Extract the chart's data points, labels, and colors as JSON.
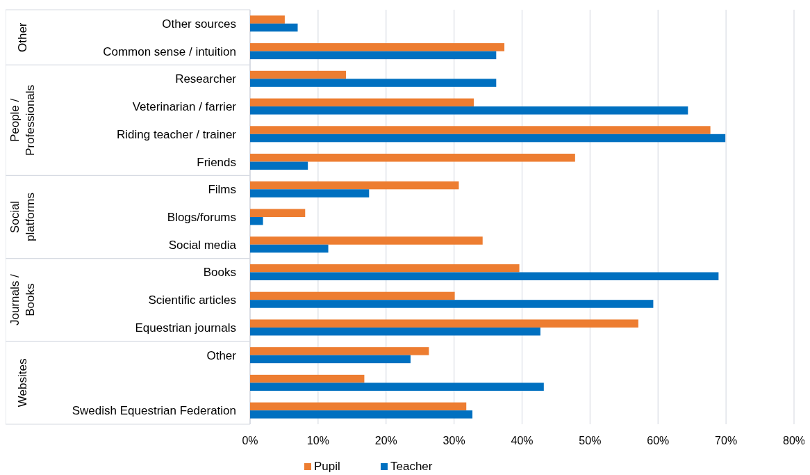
{
  "chart_data": {
    "type": "bar",
    "orientation": "horizontal",
    "categories": [
      "Other sources",
      "Common sense / intuition",
      "Researcher",
      "Veterinarian /  farrier",
      "Riding teacher / trainer",
      "Friends",
      "Films",
      "Blogs/forums",
      "Social media",
      "Books",
      "Scientific articles",
      "Equestrian journals",
      "Other",
      null,
      "Swedish Equestrian Federation"
    ],
    "series": [
      {
        "name": "Pupil",
        "color": "#ed7d31",
        "values": [
          5.1,
          37.4,
          14.1,
          32.9,
          67.7,
          47.8,
          30.7,
          8.1,
          34.2,
          39.6,
          30.1,
          57.1,
          26.3,
          16.8,
          31.8
        ]
      },
      {
        "name": "Teacher",
        "color": "#0070c0",
        "values": [
          7.0,
          36.2,
          36.2,
          64.4,
          69.9,
          8.5,
          17.5,
          1.9,
          11.5,
          68.9,
          59.3,
          42.7,
          23.6,
          43.2,
          32.7
        ]
      }
    ],
    "xlim": [
      0,
      80
    ],
    "xticks": [
      {
        "value": 0,
        "label": "0%"
      },
      {
        "value": 10,
        "label": "10%"
      },
      {
        "value": 20,
        "label": "20%"
      },
      {
        "value": 30,
        "label": "30%"
      },
      {
        "value": 40,
        "label": "40%"
      },
      {
        "value": 50,
        "label": "50%"
      },
      {
        "value": 60,
        "label": "60%"
      },
      {
        "value": 70,
        "label": "70%"
      },
      {
        "value": 80,
        "label": "80%"
      }
    ],
    "grid": "x",
    "legend": "bottom",
    "annotations": [
      "Other",
      "People /\nProfessionals",
      "Social\nplatforms",
      "Journals /\nBooks",
      "Websites"
    ]
  }
}
